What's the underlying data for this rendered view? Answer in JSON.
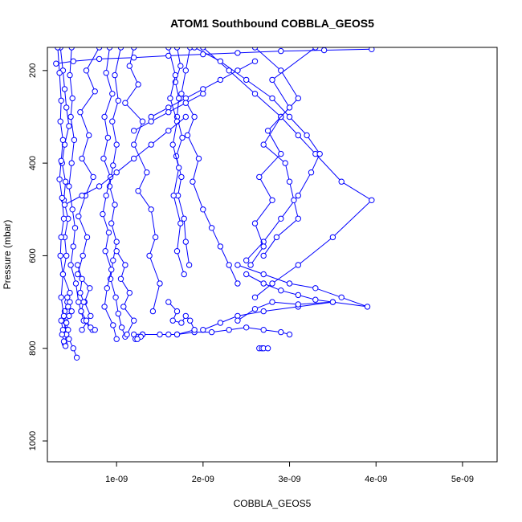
{
  "chart_data": {
    "type": "scatter",
    "title": "ATOM1 Southbound COBBLA_GEOS5",
    "xlabel": "COBBLA_GEOS5",
    "ylabel": "Pressure (mbar)",
    "xlim": [
      2e-10,
      5.4e-09
    ],
    "ylim": [
      1045,
      150
    ],
    "y_reversed": true,
    "grid": false,
    "legend": "none",
    "x_ticks": [
      {
        "value": 1e-09,
        "label": "1e-09"
      },
      {
        "value": 2e-09,
        "label": "2e-09"
      },
      {
        "value": 3e-09,
        "label": "3e-09"
      },
      {
        "value": 4e-09,
        "label": "4e-09"
      },
      {
        "value": 5e-09,
        "label": "5e-09"
      }
    ],
    "y_ticks": [
      {
        "value": 200,
        "label": "200"
      },
      {
        "value": 400,
        "label": "400"
      },
      {
        "value": 600,
        "label": "600"
      },
      {
        "value": 800,
        "label": "800"
      },
      {
        "value": 1000,
        "label": "1000"
      }
    ],
    "colors": {
      "series": "#0000ff",
      "axes": "#000000"
    },
    "series": [
      {
        "x": [
          3.5e-10,
          3.8e-10,
          4e-10,
          4.2e-10,
          4.5e-10,
          4e-10,
          3.7e-10,
          4.1e-10,
          3.9e-10,
          4.4e-10,
          4e-10,
          4.2e-10,
          3.8e-10,
          4.6e-10,
          4.3e-10,
          4e-10,
          3.9e-10,
          4.1e-10,
          4.5e-10,
          5e-10,
          5.4e-10
        ],
        "y": [
          150,
          200,
          240,
          280,
          320,
          360,
          400,
          440,
          480,
          520,
          560,
          600,
          640,
          680,
          700,
          720,
          740,
          760,
          780,
          800,
          820
        ]
      },
      {
        "x": [
          3.2e-10,
          3.4e-10,
          3.6e-10,
          3.5e-10,
          3.8e-10,
          3.6e-10,
          3.4e-10,
          3.7e-10,
          3.9e-10,
          3.6e-10,
          3.5e-10,
          3.8e-10,
          3.6e-10,
          3.9e-10,
          4.2e-10,
          4e-10
        ],
        "y": [
          150,
          205,
          265,
          310,
          350,
          395,
          435,
          475,
          520,
          560,
          600,
          640,
          690,
          730,
          770,
          790
        ]
      },
      {
        "x": [
          4.8e-10,
          4.6e-10,
          4.9e-10,
          4.7e-10,
          5.1e-10,
          4.8e-10,
          4.5e-10,
          4.9e-10,
          5.2e-10,
          5e-10,
          4.7e-10,
          5.3e-10,
          5.6e-10,
          5.9e-10,
          6.2e-10,
          7.2e-10
        ],
        "y": [
          150,
          210,
          260,
          300,
          350,
          400,
          450,
          500,
          540,
          580,
          620,
          660,
          700,
          720,
          740,
          760
        ]
      },
      {
        "x": [
          8e-10,
          6.5e-10,
          7.5e-10,
          5.8e-10,
          6.8e-10,
          6e-10,
          7.3e-10,
          6.4e-10,
          5.6e-10,
          6.6e-10,
          6.1e-10,
          5.5e-10,
          6.9e-10,
          6.3e-10,
          7e-10,
          6e-10
        ],
        "y": [
          150,
          200,
          245,
          290,
          340,
          390,
          430,
          470,
          515,
          560,
          600,
          640,
          670,
          700,
          730,
          760
        ]
      },
      {
        "x": [
          1.05e-09,
          9.8e-10,
          1.02e-09,
          9.5e-10,
          1e-09,
          9.6e-10,
          9.2e-10,
          9.8e-10,
          9.4e-10,
          1e-09,
          9.6e-10,
          9.3e-10,
          9.9e-10,
          1.02e-09,
          1.06e-09,
          1.1e-09
        ],
        "y": [
          150,
          210,
          265,
          310,
          360,
          405,
          450,
          490,
          530,
          570,
          610,
          650,
          690,
          725,
          755,
          775
        ]
      },
      {
        "x": [
          9.2e-10,
          8.8e-10,
          9.5e-10,
          8.6e-10,
          9e-10,
          8.5e-10,
          9.3e-10,
          8.8e-10,
          8.4e-10,
          9.1e-10,
          8.7e-10,
          9.4e-10,
          8.9e-10,
          8.6e-10,
          9.6e-10,
          1e-09
        ],
        "y": [
          150,
          205,
          250,
          300,
          345,
          390,
          430,
          470,
          510,
          550,
          590,
          630,
          670,
          710,
          750,
          780
        ]
      },
      {
        "x": [
          1.2e-09,
          1.15e-09,
          1.25e-09,
          1.1e-09,
          1.3e-09,
          1.2e-09,
          1.35e-09,
          1.25e-09,
          1.4e-09,
          1.45e-09,
          1.38e-09,
          1.5e-09,
          1.42e-09
        ],
        "y": [
          150,
          190,
          230,
          270,
          310,
          360,
          420,
          460,
          500,
          560,
          600,
          660,
          720
        ]
      },
      {
        "x": [
          1.7e-09,
          1.74e-09,
          1.68e-09,
          1.72e-09,
          1.7e-09,
          1.76e-09,
          1.69e-09,
          1.75e-09,
          1.71e-09,
          1.78e-09,
          1.8e-09,
          1.84e-09
        ],
        "y": [
          150,
          190,
          225,
          260,
          300,
          345,
          385,
          430,
          470,
          520,
          570,
          620
        ]
      },
      {
        "x": [
          1.85e-09,
          1.8e-09,
          1.75e-09,
          1.9e-09,
          1.82e-09,
          1.95e-09,
          1.88e-09,
          2e-09,
          2.1e-09,
          2.2e-09,
          2.3e-09,
          2.4e-09
        ],
        "y": [
          150,
          200,
          250,
          300,
          340,
          390,
          440,
          500,
          540,
          580,
          620,
          660
        ]
      },
      {
        "x": [
          1.6e-09,
          1.68e-09,
          1.62e-09,
          1.7e-09,
          1.65e-09,
          1.72e-09,
          1.66e-09,
          1.74e-09,
          1.7e-09,
          1.78e-09
        ],
        "y": [
          150,
          210,
          260,
          310,
          360,
          410,
          470,
          530,
          590,
          640
        ]
      },
      {
        "x": [
          2e-09,
          2.3e-09,
          2.6e-09,
          2.9e-09,
          3.1e-09,
          3.3e-09,
          3.6e-09,
          3.95e-09,
          3.5e-09,
          3.1e-09,
          2.8e-09,
          2.6e-09
        ],
        "y": [
          150,
          200,
          250,
          300,
          340,
          380,
          440,
          480,
          560,
          620,
          660,
          690
        ]
      },
      {
        "x": [
          1.9e-09,
          2.2e-09,
          2.5e-09,
          2.8e-09,
          3e-09,
          3.2e-09,
          3.35e-09,
          3.25e-09,
          3.1e-09,
          2.9e-09,
          2.7e-09,
          2.5e-09
        ],
        "y": [
          150,
          180,
          220,
          260,
          300,
          340,
          380,
          420,
          470,
          520,
          570,
          610
        ]
      },
      {
        "x": [
          2.6e-09,
          2.9e-09,
          3.1e-09,
          2.9e-09,
          2.7e-09,
          2.95e-09,
          3e-09,
          3.05e-09,
          3.1e-09,
          2.85e-09,
          2.7e-09
        ],
        "y": [
          150,
          200,
          260,
          300,
          360,
          400,
          440,
          480,
          520,
          560,
          600
        ]
      },
      {
        "x": [
          3.3e-09,
          2.8e-09,
          3e-09,
          2.75e-09,
          2.9e-09,
          2.65e-09,
          2.8e-09,
          2.6e-09,
          2.7e-09,
          2.55e-09
        ],
        "y": [
          150,
          220,
          280,
          330,
          380,
          430,
          480,
          530,
          580,
          620
        ]
      },
      {
        "x": [
          2.4e-09,
          2.7e-09,
          3e-09,
          3.3e-09,
          3.6e-09,
          3.9e-09,
          3.5e-09,
          3.1e-09,
          2.7e-09,
          2.4e-09,
          2.2e-09,
          2e-09
        ],
        "y": [
          620,
          640,
          660,
          670,
          690,
          710,
          700,
          710,
          720,
          730,
          745,
          760
        ]
      },
      {
        "x": [
          2.5e-09,
          2.7e-09,
          2.9e-09,
          3.1e-09,
          3.3e-09,
          3.5e-09,
          3.1e-09,
          2.8e-09,
          2.6e-09,
          2.4e-09
        ],
        "y": [
          640,
          660,
          675,
          685,
          695,
          700,
          705,
          700,
          715,
          740
        ]
      },
      {
        "x": [
          1.3e-09,
          1.5e-09,
          1.7e-09,
          1.9e-09,
          2.1e-09,
          2.3e-09,
          2.5e-09,
          2.7e-09,
          2.9e-09,
          3e-09
        ],
        "y": [
          770,
          770,
          770,
          765,
          765,
          760,
          755,
          760,
          765,
          770
        ]
      },
      {
        "x": [
          1.2e-09,
          1.25e-09,
          1.3e-09,
          1.22e-09,
          1.28e-09,
          1.24e-09
        ],
        "y": [
          770,
          775,
          770,
          780,
          775,
          780
        ]
      },
      {
        "x": [
          1.6e-09,
          1.7e-09,
          1.65e-09,
          1.75e-09,
          1.8e-09,
          1.85e-09,
          1.9e-09,
          1.7e-09,
          1.6e-09
        ],
        "y": [
          700,
          720,
          740,
          745,
          730,
          740,
          760,
          770,
          770
        ]
      },
      {
        "x": [
          2.65e-09,
          2.68e-09,
          2.7e-09,
          2.75e-09
        ],
        "y": [
          800,
          800,
          800,
          800
        ]
      },
      {
        "x": [
          1e-09,
          1.1e-09,
          1.05e-09,
          1.15e-09,
          1.08e-09,
          1.2e-09,
          1.12e-09
        ],
        "y": [
          590,
          620,
          650,
          680,
          710,
          740,
          770
        ]
      },
      {
        "x": [
          5.5e-10,
          6e-10,
          5.8e-10,
          6.2e-10,
          5.9e-10,
          6.5e-10,
          7e-10,
          7.5e-10
        ],
        "y": [
          620,
          650,
          680,
          700,
          720,
          740,
          755,
          760
        ]
      },
      {
        "x": [
          3e-10,
          5e-10,
          8e-10,
          1.2e-09,
          1.6e-09,
          2e-09,
          2.4e-09,
          2.9e-09,
          3.4e-09,
          3.95e-09
        ],
        "y": [
          185,
          180,
          175,
          172,
          168,
          165,
          162,
          158,
          156,
          154
        ]
      },
      {
        "x": [
          1.4e-09,
          1.6e-09,
          1.8e-09,
          2e-09,
          2.2e-09,
          2.4e-09,
          2.6e-09
        ],
        "y": [
          300,
          280,
          260,
          240,
          220,
          200,
          180
        ]
      },
      {
        "x": [
          1.2e-09,
          1.4e-09,
          1.6e-09,
          1.8e-09,
          2e-09
        ],
        "y": [
          330,
          310,
          290,
          270,
          250
        ]
      },
      {
        "x": [
          4e-10,
          6e-10,
          8e-10,
          1e-09,
          1.2e-09,
          1.4e-09,
          1.6e-09,
          1.8e-09
        ],
        "y": [
          490,
          470,
          450,
          420,
          390,
          360,
          330,
          300
        ]
      },
      {
        "x": [
          4.3e-10,
          4.6e-10,
          4.4e-10,
          4.8e-10,
          4.5e-10,
          4.2e-10,
          4.4e-10
        ],
        "y": [
          690,
          700,
          710,
          720,
          730,
          745,
          760
        ]
      },
      {
        "x": [
          3.6e-10,
          3.8e-10,
          3.7e-10,
          3.9e-10,
          4.1e-10
        ],
        "y": [
          740,
          760,
          770,
          785,
          795
        ]
      }
    ]
  }
}
